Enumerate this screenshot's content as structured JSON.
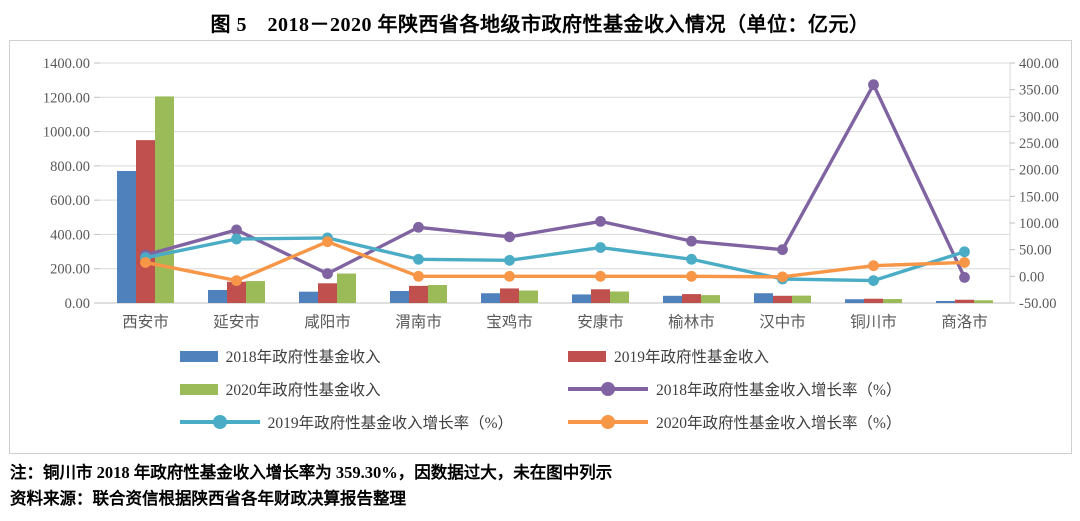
{
  "title": "图 5　2018－2020 年陕西省各地级市政府性基金收入情况（单位：亿元）",
  "notes": {
    "note": "注：铜川市 2018 年政府性基金收入增长率为 359.30%，因数据过大，未在图中列示",
    "source": "资料来源：联合资信根据陕西省各年财政决算报告整理"
  },
  "colors": {
    "bar_2018": "#4F81BD",
    "bar_2019": "#C0504D",
    "bar_2020": "#9BBB59",
    "line_2018": "#8064A2",
    "line_2019": "#4BACC6",
    "line_2020": "#F79646",
    "gridline": "#d9d9d9",
    "axis_line": "#bfbfbf",
    "axis_text": "#595959"
  },
  "chart_data": {
    "type": "bar",
    "subtype": "combo-bar-line-dual-axis",
    "categories": [
      "西安市",
      "延安市",
      "咸阳市",
      "渭南市",
      "宝鸡市",
      "安康市",
      "榆林市",
      "汉中市",
      "铜川市",
      "商洛市"
    ],
    "series": [
      {
        "name": "2018年政府性基金收入",
        "chart": "bar",
        "axis": "left",
        "color": "#4F81BD",
        "values": [
          770,
          76,
          66,
          70,
          57,
          50,
          42,
          57,
          22,
          12
        ]
      },
      {
        "name": "2019年政府性基金收入",
        "chart": "bar",
        "axis": "left",
        "color": "#C0504D",
        "values": [
          950,
          124,
          115,
          100,
          85,
          80,
          52,
          42,
          25,
          19
        ]
      },
      {
        "name": "2020年政府性基金收入",
        "chart": "bar",
        "axis": "left",
        "color": "#9BBB59",
        "values": [
          1205,
          128,
          172,
          105,
          73,
          67,
          46,
          43,
          23,
          16
        ]
      },
      {
        "name": "2018年政府性基金收入增长率（%）",
        "chart": "line",
        "axis": "right",
        "color": "#8064A2",
        "values": [
          40,
          87,
          5,
          92,
          74,
          103,
          66,
          50,
          359.3,
          -2
        ]
      },
      {
        "name": "2019年政府性基金收入增长率（%）",
        "chart": "line",
        "axis": "right",
        "color": "#4BACC6",
        "values": [
          35,
          70,
          72,
          32,
          30,
          54,
          32,
          -5,
          -8,
          46
        ]
      },
      {
        "name": "2020年政府性基金收入增长率（%）",
        "chart": "line",
        "axis": "right",
        "color": "#F79646",
        "values": [
          26,
          -8,
          65,
          0,
          0,
          0,
          0,
          -1,
          20,
          26
        ]
      }
    ],
    "left_axis": {
      "min": 0,
      "max": 1400,
      "step": 200,
      "tick_labels": [
        "0.00",
        "200.00",
        "400.00",
        "600.00",
        "800.00",
        "1000.00",
        "1200.00",
        "1400.00"
      ]
    },
    "right_axis": {
      "min": -50,
      "max": 400,
      "step": 50,
      "tick_labels": [
        "-50.00",
        "0.00",
        "50.00",
        "100.00",
        "150.00",
        "200.00",
        "250.00",
        "300.00",
        "350.00",
        "400.00"
      ]
    },
    "grid": true,
    "legend_position": "bottom"
  }
}
